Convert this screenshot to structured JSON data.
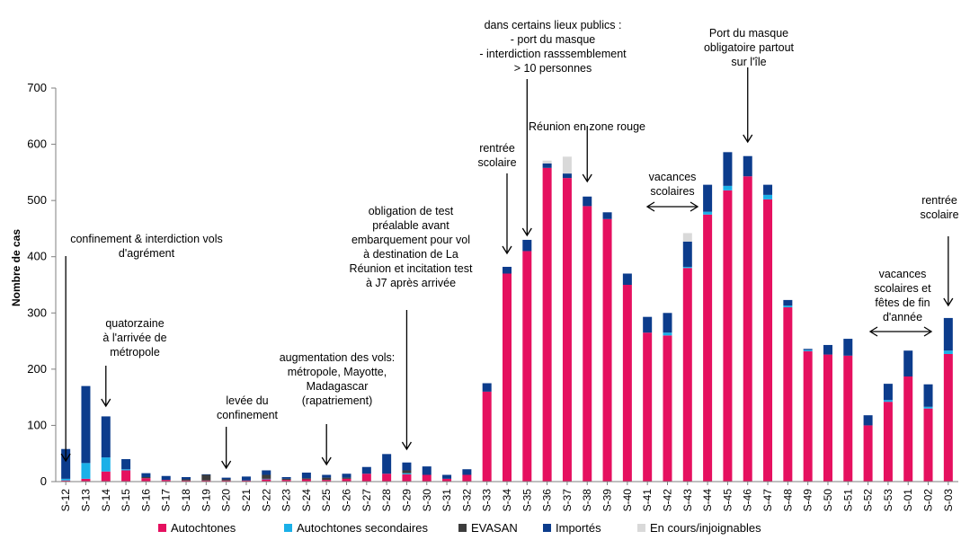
{
  "chart_data": {
    "type": "bar",
    "stacked": true,
    "title": "",
    "xlabel": "",
    "ylabel": "Nombre de cas",
    "ylim": [
      0,
      700
    ],
    "yticks": [
      0,
      100,
      200,
      300,
      400,
      500,
      600,
      700
    ],
    "grid": false,
    "legend_position": "bottom",
    "categories": [
      "S-12",
      "S-13",
      "S-14",
      "S-15",
      "S-16",
      "S-17",
      "S-18",
      "S-19",
      "S-20",
      "S-21",
      "S-22",
      "S-23",
      "S-24",
      "S-25",
      "S-26",
      "S-27",
      "S-28",
      "S-29",
      "S-30",
      "S-31",
      "S-32",
      "S-33",
      "S-34",
      "S-35",
      "S-36",
      "S-37",
      "S-38",
      "S-39",
      "S-40",
      "S-41",
      "S-42",
      "S-43",
      "S-44",
      "S-45",
      "S-46",
      "S-47",
      "S-48",
      "S-49",
      "S-50",
      "S-51",
      "S-52",
      "S-53",
      "S-01",
      "S-02",
      "S-03"
    ],
    "series": [
      {
        "name": "Autochtones",
        "color": "#e5105f",
        "values": [
          2,
          5,
          18,
          20,
          6,
          3,
          2,
          2,
          2,
          2,
          4,
          3,
          4,
          3,
          5,
          14,
          14,
          13,
          12,
          5,
          12,
          160,
          370,
          410,
          558,
          540,
          490,
          467,
          350,
          265,
          260,
          380,
          475,
          518,
          543,
          502,
          310,
          232,
          226,
          224,
          100,
          142,
          187,
          130,
          227
        ]
      },
      {
        "name": "Autochtones secondaires",
        "color": "#1ab0e8",
        "values": [
          3,
          28,
          25,
          2,
          0,
          0,
          0,
          0,
          0,
          0,
          1,
          0,
          0,
          0,
          0,
          0,
          0,
          2,
          0,
          0,
          0,
          0,
          0,
          0,
          0,
          0,
          0,
          0,
          0,
          0,
          5,
          2,
          5,
          8,
          0,
          8,
          3,
          2,
          0,
          0,
          0,
          3,
          0,
          3,
          6
        ]
      },
      {
        "name": "EVASAN",
        "color": "#3c3c3c",
        "values": [
          0,
          0,
          0,
          0,
          2,
          0,
          2,
          10,
          2,
          0,
          7,
          2,
          2,
          4,
          2,
          0,
          0,
          5,
          0,
          0,
          0,
          0,
          0,
          0,
          0,
          0,
          0,
          0,
          0,
          0,
          0,
          0,
          0,
          0,
          0,
          0,
          0,
          0,
          0,
          0,
          0,
          0,
          0,
          0,
          0
        ]
      },
      {
        "name": "Importés",
        "color": "#0c3c8c",
        "values": [
          53,
          137,
          73,
          18,
          7,
          7,
          4,
          1,
          3,
          7,
          8,
          3,
          10,
          5,
          7,
          12,
          35,
          14,
          15,
          7,
          10,
          15,
          12,
          20,
          8,
          8,
          17,
          12,
          20,
          28,
          35,
          45,
          48,
          60,
          36,
          18,
          10,
          2,
          17,
          30,
          18,
          29,
          46,
          40,
          58
        ]
      },
      {
        "name": "En cours/injoignables",
        "color": "#d9d9d9",
        "values": [
          0,
          0,
          0,
          0,
          0,
          0,
          0,
          0,
          0,
          0,
          0,
          0,
          0,
          0,
          0,
          0,
          0,
          0,
          0,
          0,
          0,
          0,
          0,
          0,
          5,
          30,
          0,
          0,
          0,
          0,
          0,
          15,
          0,
          0,
          0,
          0,
          0,
          0,
          0,
          0,
          0,
          0,
          0,
          0,
          0
        ]
      }
    ],
    "annotations": [
      {
        "lines": [
          "confinement &  interdiction vols",
          "d'agrément"
        ],
        "week": "S-12",
        "arrow": "down"
      },
      {
        "lines": [
          "quatorzaine",
          "à l'arrivée de",
          "métropole"
        ],
        "week": "S-14",
        "arrow": "down"
      },
      {
        "lines": [
          "levée du",
          "confinement"
        ],
        "week": "S-20",
        "arrow": "down"
      },
      {
        "lines": [
          "augmentation des vols:",
          "métropole, Mayotte,",
          "Madagascar",
          "(rapatriement)"
        ],
        "week": "S-25",
        "arrow": "down"
      },
      {
        "lines": [
          "obligation de test",
          "préalable avant",
          "embarquement pour vol",
          "à destination de La",
          "Réunion et incitation test",
          "à J7 après arrivée"
        ],
        "week": "S-29",
        "arrow": "down"
      },
      {
        "lines": [
          "rentrée",
          "scolaire"
        ],
        "week": "S-34",
        "arrow": "down"
      },
      {
        "lines": [
          "dans certains lieux publics :",
          "- port du masque",
          "- interdiction rasssemblement",
          "> 10 personnes"
        ],
        "week": "S-35",
        "arrow": "down"
      },
      {
        "lines": [
          "Réunion en zone rouge"
        ],
        "week": "S-38",
        "arrow": "down"
      },
      {
        "lines": [
          "vacances",
          "scolaires"
        ],
        "week": "S-41 – S-43",
        "arrow": "double"
      },
      {
        "lines": [
          "Port du masque",
          "obligatoire partout",
          "sur l'île"
        ],
        "week": "S-46",
        "arrow": "down"
      },
      {
        "lines": [
          "vacances",
          "scolaires et",
          "fêtes de fin",
          "d'année"
        ],
        "week": "S-52 – S-02",
        "arrow": "double"
      },
      {
        "lines": [
          "rentrée",
          "scolaire"
        ],
        "week": "S-03",
        "arrow": "down"
      }
    ]
  }
}
